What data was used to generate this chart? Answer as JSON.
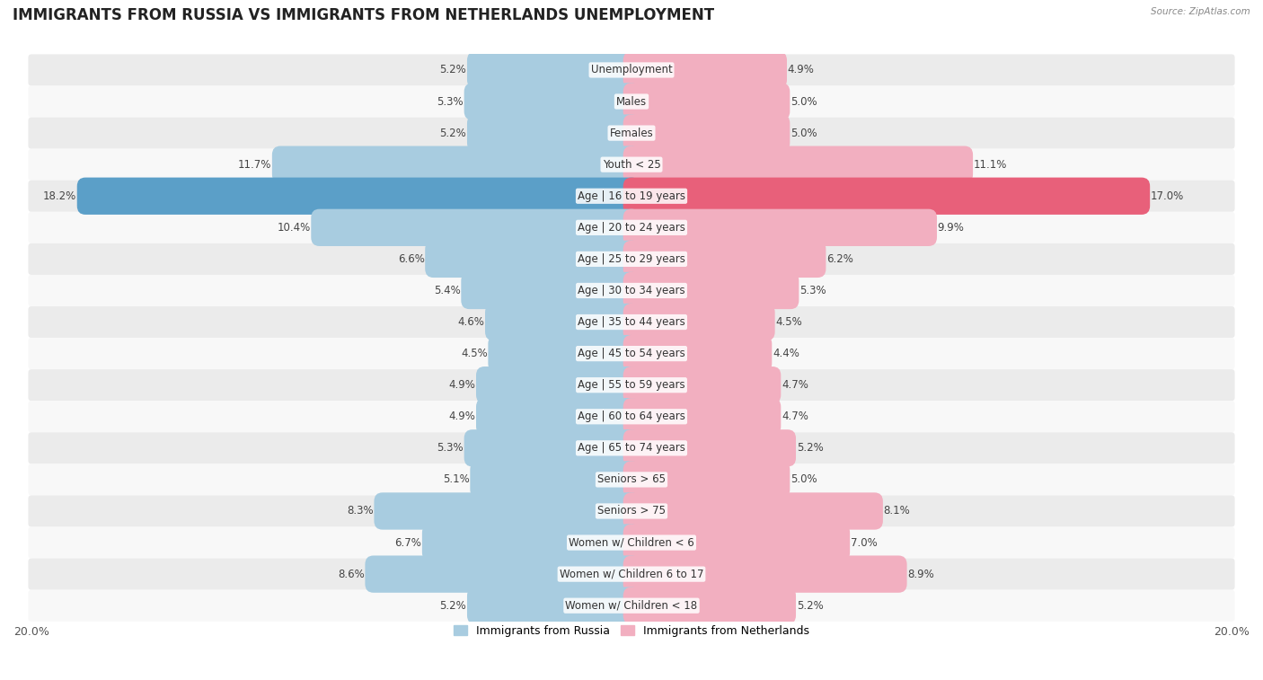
{
  "title": "IMMIGRANTS FROM RUSSIA VS IMMIGRANTS FROM NETHERLANDS UNEMPLOYMENT",
  "source": "Source: ZipAtlas.com",
  "categories": [
    "Unemployment",
    "Males",
    "Females",
    "Youth < 25",
    "Age | 16 to 19 years",
    "Age | 20 to 24 years",
    "Age | 25 to 29 years",
    "Age | 30 to 34 years",
    "Age | 35 to 44 years",
    "Age | 45 to 54 years",
    "Age | 55 to 59 years",
    "Age | 60 to 64 years",
    "Age | 65 to 74 years",
    "Seniors > 65",
    "Seniors > 75",
    "Women w/ Children < 6",
    "Women w/ Children 6 to 17",
    "Women w/ Children < 18"
  ],
  "russia_values": [
    5.2,
    5.3,
    5.2,
    11.7,
    18.2,
    10.4,
    6.6,
    5.4,
    4.6,
    4.5,
    4.9,
    4.9,
    5.3,
    5.1,
    8.3,
    6.7,
    8.6,
    5.2
  ],
  "netherlands_values": [
    4.9,
    5.0,
    5.0,
    11.1,
    17.0,
    9.9,
    6.2,
    5.3,
    4.5,
    4.4,
    4.7,
    4.7,
    5.2,
    5.0,
    8.1,
    7.0,
    8.9,
    5.2
  ],
  "russia_color": "#a8cce0",
  "netherlands_color": "#f2afc0",
  "russia_highlight_color": "#5b9fc8",
  "netherlands_highlight_color": "#e8607a",
  "max_val": 20.0,
  "bar_height": 0.62,
  "bg_color_odd": "#ebebeb",
  "bg_color_even": "#f8f8f8",
  "label_fontsize": 8.5,
  "value_fontsize": 8.5,
  "title_fontsize": 12
}
